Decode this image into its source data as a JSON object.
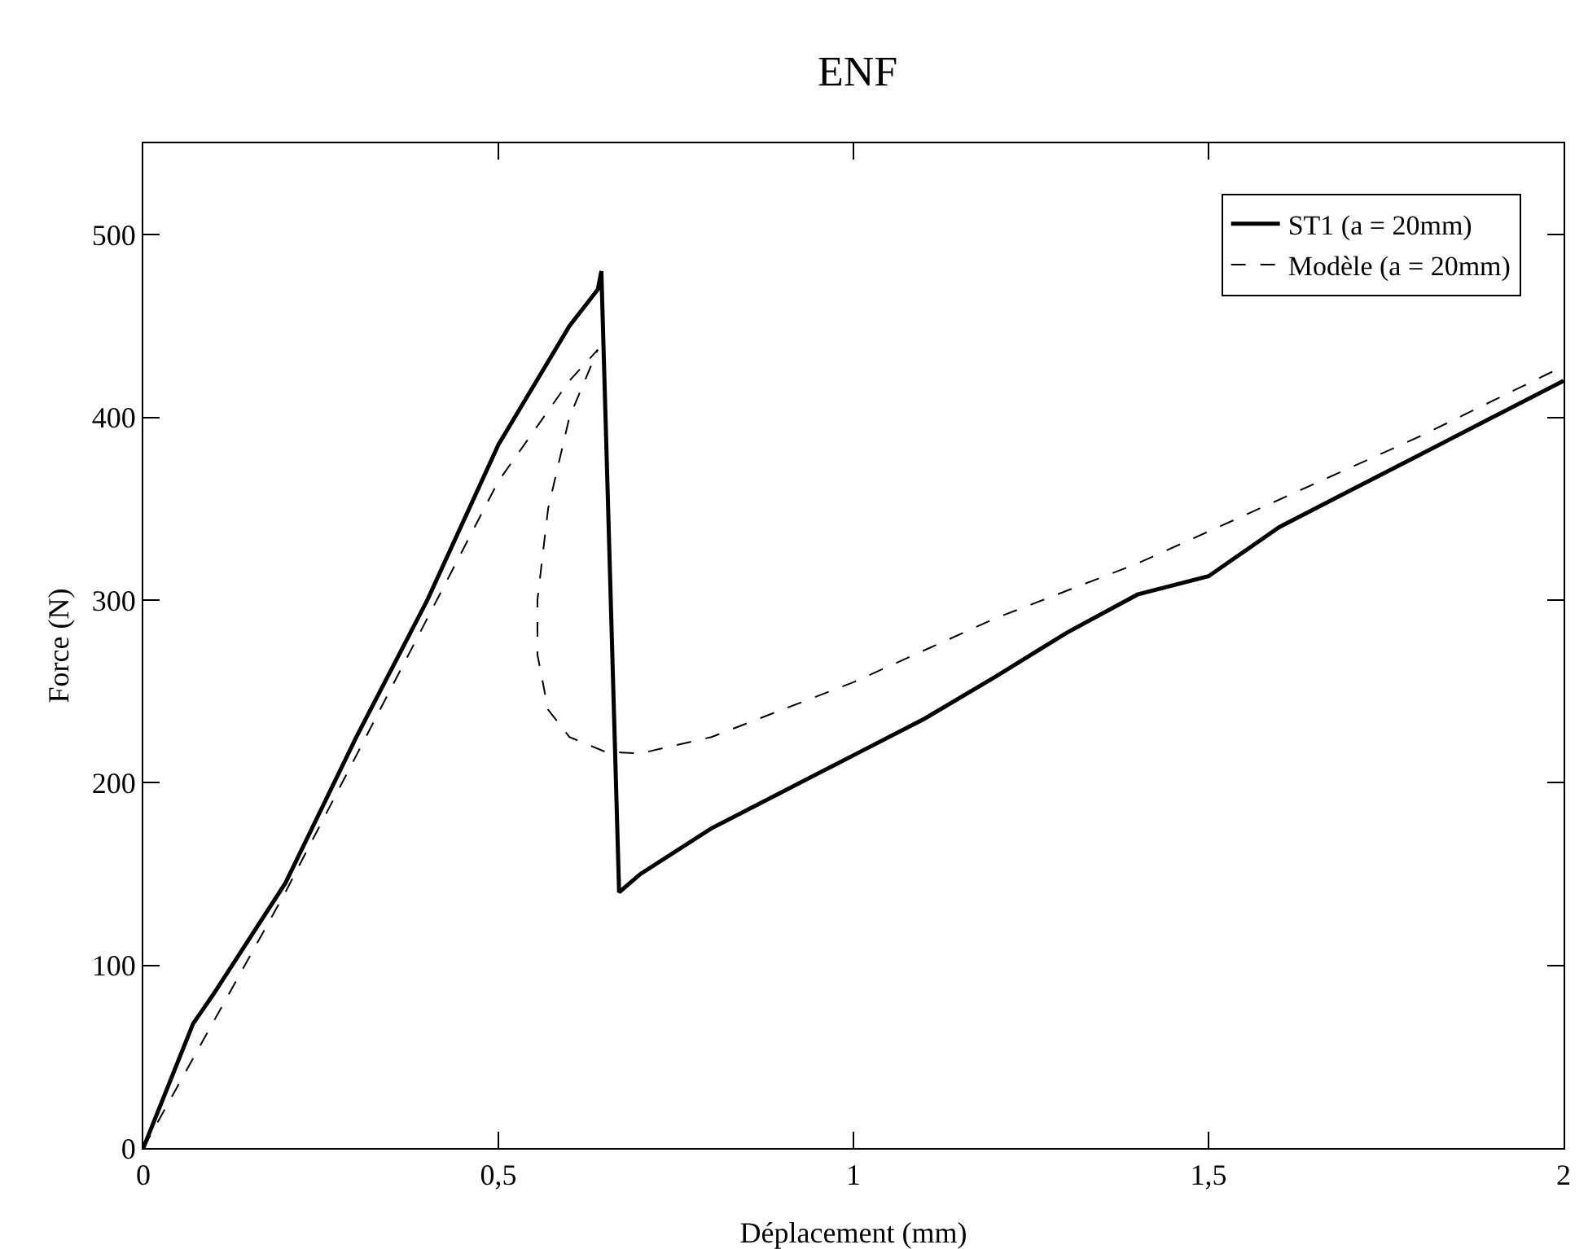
{
  "chart_data": {
    "type": "line",
    "title": "ENF",
    "xlabel": "Déplacement (mm)",
    "ylabel": "Force (N)",
    "xlim": [
      0,
      2
    ],
    "ylim": [
      0,
      550
    ],
    "xticks": [
      0,
      {
        "value": 0.5,
        "label": "0,5"
      },
      1,
      {
        "value": 1.5,
        "label": "1,5"
      },
      2
    ],
    "yticks": [
      0,
      100,
      200,
      300,
      400,
      500
    ],
    "grid": false,
    "legend": "top right",
    "marker": "none",
    "series": [
      {
        "name": "ST1 (a = 20mm)",
        "color": "#000000",
        "line_style": "solid",
        "x": [
          0,
          0.07,
          0.1,
          0.2,
          0.3,
          0.4,
          0.5,
          0.6,
          0.64,
          0.645,
          0.67,
          0.7,
          0.8,
          0.9,
          1.0,
          1.1,
          1.2,
          1.3,
          1.4,
          1.5,
          1.6,
          1.7,
          1.8,
          1.9,
          2.0
        ],
        "values": [
          0,
          68,
          85,
          145,
          225,
          300,
          385,
          450,
          470,
          480,
          140,
          150,
          175,
          195,
          215,
          235,
          258,
          282,
          303,
          313,
          340,
          360,
          380,
          400,
          420
        ]
      },
      {
        "name": "Modèle (a = 20mm)",
        "color": "#000000",
        "line_style": "dashed",
        "x": [
          0,
          0.1,
          0.2,
          0.3,
          0.4,
          0.5,
          0.6,
          0.64,
          0.6,
          0.57,
          0.555,
          0.555,
          0.57,
          0.6,
          0.65,
          0.7,
          0.8,
          1.0,
          1.2,
          1.4,
          1.6,
          1.8,
          2.0
        ],
        "values": [
          0,
          70,
          140,
          215,
          290,
          365,
          420,
          437,
          400,
          350,
          300,
          270,
          240,
          225,
          217,
          216,
          225,
          255,
          290,
          320,
          355,
          390,
          428
        ]
      }
    ]
  }
}
